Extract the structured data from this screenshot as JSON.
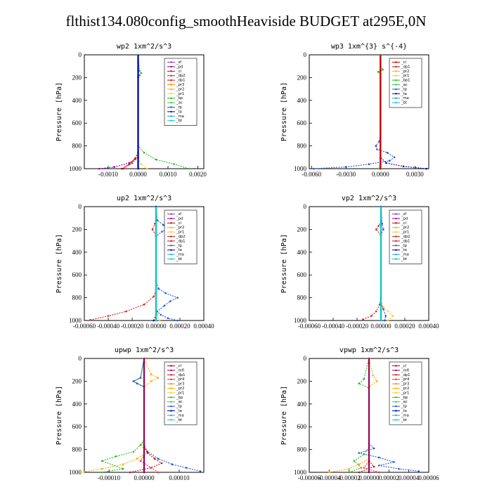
{
  "title": "flthist134.080config_smoothHeaviside  BUDGET at295E,0N",
  "colors": {
    "sf": "#9933cc",
    "pd": "#8800aa",
    "cl": "#cc0000",
    "dp2": "#dd2222",
    "dp1": "#cc1111",
    "pr3": "#ff8800",
    "pr2": "#ffaa00",
    "pr1": "#ffcc22",
    "pr4": "#ee3333",
    "mfl": "#990055",
    "bp": "#22bb22",
    "bp1": "#22bb22",
    "ac": "#33cc33",
    "tp": "#2255dd",
    "ta": "#0000aa",
    "ma": "#3399cc",
    "bt": "#00cccc"
  },
  "chart_data": [
    {
      "type": "line",
      "title": "wp2  1xm^2/s^3",
      "ylabel": "Pressure [hPa]",
      "xlim": [
        -0.0018,
        0.0022
      ],
      "ylim": [
        1000,
        0
      ],
      "xticks": [
        "-0.0010",
        "0.0000",
        "0.0010",
        "0.0020"
      ],
      "xtick_values": [
        -0.001,
        0,
        0.001,
        0.002
      ],
      "yticks": [
        "0",
        "200",
        "400",
        "600",
        "800",
        "1000"
      ],
      "legend": [
        "_sf",
        "_pd",
        "_cl",
        "_dp2",
        "_dp1",
        "_pr3",
        "_pr2",
        "_pr1",
        "_bp",
        "_ac",
        "_tp",
        "_ta",
        "_ma",
        "_bt"
      ],
      "series": [
        {
          "name": "_pd",
          "key": "pd",
          "x": [
            -0.0013,
            -0.0008,
            -0.0003,
            0,
            0
          ],
          "y": [
            1000,
            985,
            950,
            900,
            0
          ]
        },
        {
          "name": "_cl",
          "key": "cl",
          "x": [
            -0.00055,
            -0.0003,
            -0.0001,
            0,
            0
          ],
          "y": [
            1000,
            960,
            910,
            860,
            0
          ]
        },
        {
          "name": "_dp1",
          "key": "dp1",
          "x": [
            -0.0005,
            -0.0002,
            0,
            0
          ],
          "y": [
            1000,
            950,
            900,
            0
          ]
        },
        {
          "name": "_pr1",
          "key": "pr1",
          "x": [
            0.0003,
            0.0001,
            0,
            0
          ],
          "y": [
            1000,
            960,
            910,
            0
          ]
        },
        {
          "name": "_bp",
          "key": "bp",
          "x": [
            0.0017,
            0.0012,
            0.0006,
            0.0002,
            0,
            0,
            5e-05,
            0.0001,
            5e-05,
            0
          ],
          "y": [
            1000,
            960,
            920,
            860,
            800,
            200,
            180,
            160,
            140,
            0
          ]
        },
        {
          "name": "_bt",
          "key": "bt",
          "x": [
            0,
            0
          ],
          "y": [
            1000,
            0
          ]
        },
        {
          "name": "_ta",
          "key": "ta",
          "x": [
            0,
            0
          ],
          "y": [
            1000,
            0
          ]
        }
      ]
    },
    {
      "type": "line",
      "title": "wp3  1xm^{3} s^{-4}",
      "ylabel": "Pressure [hPa]",
      "xlim": [
        -0.0062,
        0.0042
      ],
      "ylim": [
        1000,
        0
      ],
      "xticks": [
        "-0.0060",
        "-0.0030",
        "0.0000",
        "0.0030"
      ],
      "xtick_values": [
        -0.006,
        -0.003,
        0,
        0.003
      ],
      "yticks": [
        "0",
        "200",
        "400",
        "600",
        "800",
        "1000"
      ],
      "legend": [
        "_cl",
        "_dp1",
        "_pr2",
        "_pr1",
        "_bp1",
        "_ac",
        "_tp",
        "_ta",
        "_ma",
        "_bt"
      ],
      "series": [
        {
          "name": "_tp",
          "key": "tp",
          "x": [
            -0.0058,
            -0.003,
            -0.001,
            0.0008,
            0.0012,
            0.0006,
            -0.0003,
            -0.0004,
            -0.0001,
            0,
            0
          ],
          "y": [
            1000,
            985,
            960,
            930,
            900,
            860,
            830,
            800,
            760,
            700,
            0
          ]
        },
        {
          "name": "_ta",
          "key": "ta",
          "x": [
            0.004,
            0.002,
            0.0005,
            0,
            0
          ],
          "y": [
            1000,
            980,
            950,
            900,
            0
          ]
        },
        {
          "name": "_ac",
          "key": "ac",
          "x": [
            -0.0002,
            0,
            0
          ],
          "y": [
            1000,
            960,
            0
          ]
        },
        {
          "name": "_bp1",
          "key": "bp1",
          "x": [
            0,
            -0.0002,
            0,
            0.0002,
            0
          ],
          "y": [
            180,
            150,
            140,
            130,
            100
          ]
        },
        {
          "name": "_dp1",
          "key": "dp1",
          "x": [
            0,
            0
          ],
          "y": [
            1000,
            0
          ]
        },
        {
          "name": "_cl",
          "key": "cl",
          "x": [
            0,
            0
          ],
          "y": [
            1000,
            0
          ]
        }
      ]
    },
    {
      "type": "line",
      "title": "up2  1xm^2/s^3",
      "ylabel": "Pressure [hPa]",
      "xlim": [
        -0.0006,
        0.0004
      ],
      "ylim": [
        1000,
        0
      ],
      "xticks": [
        "-0.00060",
        "-0.00040",
        "-0.00020",
        "0.00000",
        "0.00020",
        "0.00040"
      ],
      "xtick_values": [
        -0.0006,
        -0.0004,
        -0.0002,
        0,
        0.0002,
        0.0004
      ],
      "yticks": [
        "0",
        "200",
        "400",
        "600",
        "800",
        "1000"
      ],
      "legend": [
        "_sf",
        "_pd",
        "_cl",
        "_pr2",
        "_pr1",
        "_dp2",
        "_dp1",
        "_tp",
        "_ta",
        "_ma",
        "_bt"
      ],
      "series": [
        {
          "name": "_dp2",
          "key": "dp2",
          "x": [
            -0.00055,
            -0.0004,
            -0.00025,
            -0.0001,
            -2e-05,
            0,
            0,
            -3e-05,
            -1e-05,
            0,
            0
          ],
          "y": [
            995,
            960,
            920,
            860,
            790,
            730,
            250,
            200,
            150,
            120,
            0
          ]
        },
        {
          "name": "_tp",
          "key": "tp",
          "x": [
            0.00018,
            0.0001,
            4e-05,
            1e-05,
            7e-05,
            0.00012,
            0.00018,
            8e-05,
            2e-05,
            0,
            0,
            5e-05,
            9e-05,
            6e-05,
            1e-05,
            0
          ],
          "y": [
            1000,
            980,
            950,
            920,
            870,
            830,
            800,
            760,
            720,
            650,
            260,
            220,
            200,
            160,
            120,
            0
          ]
        },
        {
          "name": "_pr1",
          "key": "pr1",
          "x": [
            3e-05,
            1e-05,
            0,
            0
          ],
          "y": [
            1000,
            940,
            880,
            0
          ]
        },
        {
          "name": "_ta",
          "key": "ta",
          "x": [
            -2e-05,
            0,
            0
          ],
          "y": [
            1000,
            950,
            0
          ]
        },
        {
          "name": "_cl",
          "key": "cl",
          "x": [
            0,
            0
          ],
          "y": [
            1000,
            0
          ]
        },
        {
          "name": "_bt",
          "key": "bt",
          "x": [
            0,
            0
          ],
          "y": [
            1000,
            0
          ]
        }
      ]
    },
    {
      "type": "line",
      "title": "vp2  1xm^2/s^3",
      "ylabel": "Pressure [hPa]",
      "xlim": [
        -0.0006,
        0.0004
      ],
      "ylim": [
        1000,
        0
      ],
      "xticks": [
        "-0.00060",
        "-0.00040",
        "-0.00020",
        "0.00000",
        "0.00020",
        "0.00040"
      ],
      "xtick_values": [
        -0.0006,
        -0.0004,
        -0.0002,
        0,
        0.0002,
        0.0004
      ],
      "yticks": [
        "0",
        "200",
        "400",
        "600",
        "800",
        "1000"
      ],
      "legend": [
        "_sf",
        "_pd",
        "_cl",
        "_pr2",
        "_pr1",
        "_dp2",
        "_dp1",
        "_tp",
        "_ta",
        "_ma",
        "_bt"
      ],
      "series": [
        {
          "name": "_dp2",
          "key": "dp2",
          "x": [
            -0.00015,
            -8e-05,
            -4e-05,
            -1e-05,
            0,
            0,
            -4e-05,
            -2e-05,
            0,
            0
          ],
          "y": [
            990,
            960,
            920,
            860,
            800,
            250,
            200,
            170,
            130,
            0
          ]
        },
        {
          "name": "_pr1",
          "key": "pr1",
          "x": [
            6e-05,
            0.0001,
            6e-05,
            2e-05,
            0,
            0
          ],
          "y": [
            1000,
            960,
            920,
            880,
            840,
            0
          ]
        },
        {
          "name": "_tp",
          "key": "tp",
          "x": [
            3e-05,
            4e-05,
            2e-05,
            0,
            0,
            2e-05,
            1e-05,
            0
          ],
          "y": [
            1000,
            960,
            900,
            850,
            250,
            200,
            150,
            0
          ]
        },
        {
          "name": "_cl",
          "key": "cl",
          "x": [
            0,
            0
          ],
          "y": [
            1000,
            0
          ]
        },
        {
          "name": "_bt",
          "key": "bt",
          "x": [
            0,
            0
          ],
          "y": [
            1000,
            0
          ]
        }
      ]
    },
    {
      "type": "line",
      "title": "upwp  1xm^2/s^3",
      "ylabel": "Pressure [hPa]",
      "xlim": [
        -0.00017,
        0.00017
      ],
      "ylim": [
        1000,
        0
      ],
      "xticks": [
        "-0.00010",
        "0.00000",
        "0.00010"
      ],
      "xtick_values": [
        -0.0001,
        0,
        0.0001
      ],
      "yticks": [
        "0",
        "200",
        "400",
        "600",
        "800",
        "1000"
      ],
      "legend": [
        "_cl",
        "_mfl",
        "_dp1",
        "_pr4",
        "_pr3",
        "_pr2",
        "_pr1",
        "_bp",
        "_ac",
        "_tp",
        "_ta",
        "_ma",
        "_bt"
      ],
      "series": [
        {
          "name": "_pr2",
          "key": "pr2",
          "x": [
            -0.00018,
            -0.00012,
            -6e-05,
            -2e-05,
            1e-05,
            -1e-05,
            0,
            0,
            2e-05,
            4e-05,
            2e-05,
            0
          ],
          "y": [
            1000,
            970,
            930,
            880,
            820,
            760,
            720,
            250,
            200,
            170,
            140,
            0
          ]
        },
        {
          "name": "_bp",
          "key": "bp",
          "x": [
            -0.00012,
            -6e-05,
            -0.00012,
            -8e-05,
            -3e-05,
            -1e-05,
            0,
            0,
            -3e-05,
            -1e-05,
            0
          ],
          "y": [
            1000,
            970,
            900,
            860,
            820,
            760,
            720,
            250,
            200,
            170,
            0
          ]
        },
        {
          "name": "_tp",
          "key": "tp",
          "x": [
            0.00016,
            0.00012,
            8e-05,
            4e-05,
            1e-05,
            0,
            0,
            -2e-05,
            -3e-05,
            -1e-05,
            0
          ],
          "y": [
            990,
            960,
            930,
            880,
            820,
            760,
            250,
            220,
            200,
            170,
            0
          ]
        },
        {
          "name": "_dp1",
          "key": "dp1",
          "x": [
            -4e-05,
            2e-05,
            5e-05,
            3e-05,
            1e-05,
            0,
            0
          ],
          "y": [
            1000,
            960,
            920,
            880,
            830,
            780,
            0
          ]
        },
        {
          "name": "_pr4",
          "key": "pr4",
          "x": [
            4e-05,
            2e-05,
            -1e-05,
            0,
            0
          ],
          "y": [
            1000,
            960,
            900,
            850,
            0
          ]
        },
        {
          "name": "_mfl",
          "key": "mfl",
          "x": [
            0,
            0
          ],
          "y": [
            1000,
            0
          ]
        }
      ]
    },
    {
      "type": "line",
      "title": "vpwp  1xm^2/s^3",
      "ylabel": "Pressure [hPa]",
      "xlim": [
        -6e-05,
        6e-05
      ],
      "ylim": [
        1000,
        0
      ],
      "xticks": [
        "-0.00006",
        "-0.00004",
        "-0.00002",
        "0.00000",
        "0.00002",
        "0.00004",
        "0.00006"
      ],
      "xtick_values": [
        -6e-05,
        -4e-05,
        -2e-05,
        0,
        2e-05,
        4e-05,
        6e-05
      ],
      "yticks": [
        "0",
        "200",
        "400",
        "600",
        "800",
        "1000"
      ],
      "legend": [
        "_cl",
        "_mfl",
        "_dp1",
        "_pr4",
        "_pr3",
        "_pr2",
        "_pr1",
        "_bp",
        "_ac",
        "_tp",
        "_ta",
        "_ma",
        "_bt"
      ],
      "series": [
        {
          "name": "_tp",
          "key": "tp",
          "x": [
            5e-05,
            3e-05,
            1e-05,
            2.5e-05,
            1e-05,
            -1e-05,
            5e-06,
            0,
            0
          ],
          "y": [
            990,
            970,
            940,
            910,
            870,
            830,
            790,
            750,
            0
          ]
        },
        {
          "name": "_pr2",
          "key": "pr2",
          "x": [
            -4e-05,
            -2e-05,
            -1e-05,
            0,
            0,
            8e-06,
            4e-06,
            0
          ],
          "y": [
            1000,
            970,
            930,
            880,
            250,
            200,
            150,
            0
          ]
        },
        {
          "name": "_bp",
          "key": "bp",
          "x": [
            -2e-05,
            -8e-06,
            -1.5e-05,
            -5e-06,
            0,
            0,
            -1e-05,
            -5e-06,
            0
          ],
          "y": [
            1000,
            960,
            900,
            840,
            780,
            260,
            220,
            180,
            0
          ]
        },
        {
          "name": "_dp1",
          "key": "dp1",
          "x": [
            -1e-05,
            5e-06,
            0,
            0
          ],
          "y": [
            1000,
            950,
            900,
            0
          ]
        },
        {
          "name": "_pr4",
          "key": "pr4",
          "x": [
            1e-05,
            -5e-06,
            0,
            0
          ],
          "y": [
            1000,
            960,
            900,
            0
          ]
        },
        {
          "name": "_mfl",
          "key": "mfl",
          "x": [
            0,
            0
          ],
          "y": [
            1000,
            0
          ]
        }
      ]
    }
  ]
}
